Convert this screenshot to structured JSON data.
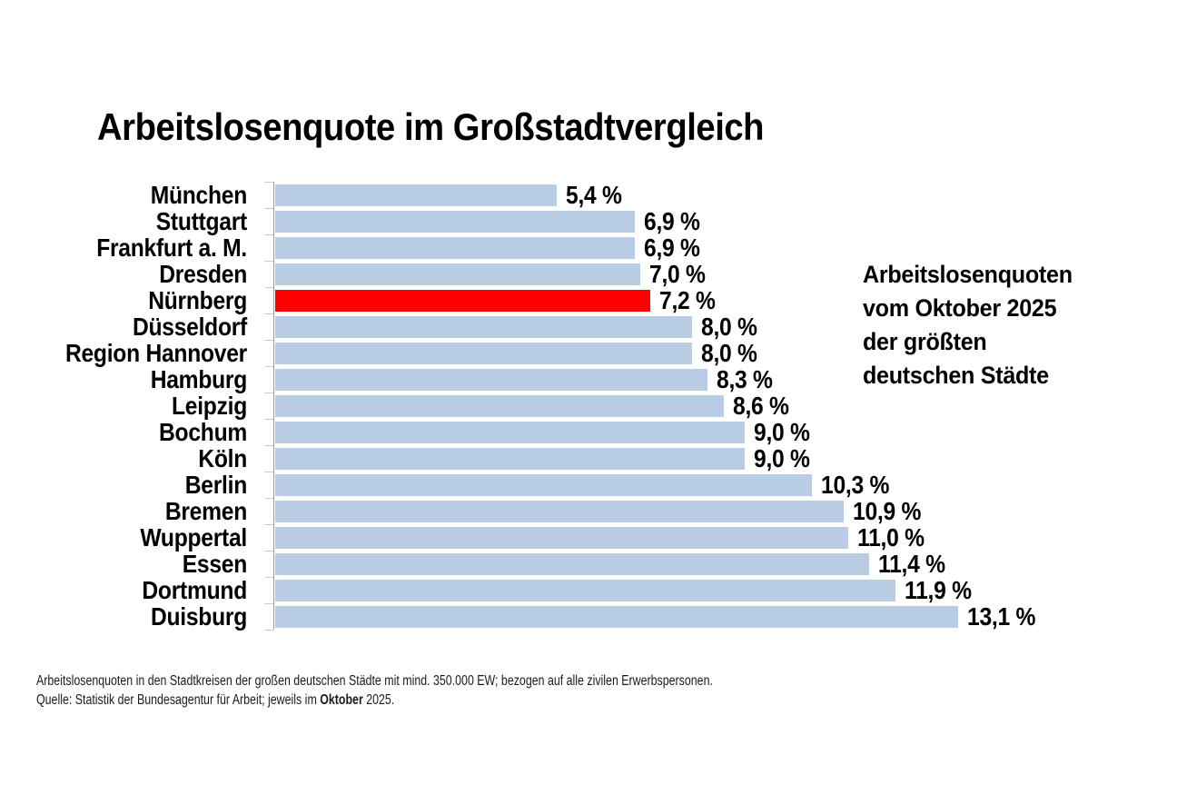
{
  "chart_data": {
    "type": "bar",
    "orientation": "horizontal",
    "title": "Arbeitslosenquote im Großstadtvergleich",
    "categories": [
      "München",
      "Stuttgart",
      "Frankfurt a. M.",
      "Dresden",
      "Nürnberg",
      "Düsseldorf",
      "Region Hannover",
      "Hamburg",
      "Leipzig",
      "Bochum",
      "Köln",
      "Berlin",
      "Bremen",
      "Wuppertal",
      "Essen",
      "Dortmund",
      "Duisburg"
    ],
    "values": [
      5.4,
      6.9,
      6.9,
      7.0,
      7.2,
      8.0,
      8.0,
      8.3,
      8.6,
      9.0,
      9.0,
      10.3,
      10.9,
      11.0,
      11.4,
      11.9,
      13.1
    ],
    "value_labels": [
      "5,4 %",
      "6,9 %",
      "6,9 %",
      "7,0 %",
      "7,2 %",
      "8,0 %",
      "8,0 %",
      "8,3 %",
      "8,6 %",
      "9,0 %",
      "9,0 %",
      "10,3 %",
      "10,9 %",
      "11,0 %",
      "11,4 %",
      "11,9 %",
      "13,1 %"
    ],
    "highlight_index": 4,
    "unit": "%",
    "xlim": [
      0,
      13.5
    ],
    "grid": "off",
    "legend": "none",
    "colors": {
      "bar": "#B8CCE4",
      "highlight": "#FF0000",
      "axis": "#9b9b9b",
      "tick": "#c9c9c9",
      "text": "#000000"
    }
  },
  "annotation": {
    "lines": [
      "Arbeitslosenquoten",
      "vom Oktober 2025",
      "der größten",
      "deutschen Städte"
    ]
  },
  "footer": {
    "line1": "Arbeitslosenquoten in den Stadtkreisen der großen deutschen Städte mit mind. 350.000 EW; bezogen auf alle zivilen Erwerbspersonen.",
    "line2_pre": "Quelle: Statistik der Bundesagentur für Arbeit; jeweils im ",
    "line2_bold": "Oktober",
    "line2_post": " 2025."
  }
}
